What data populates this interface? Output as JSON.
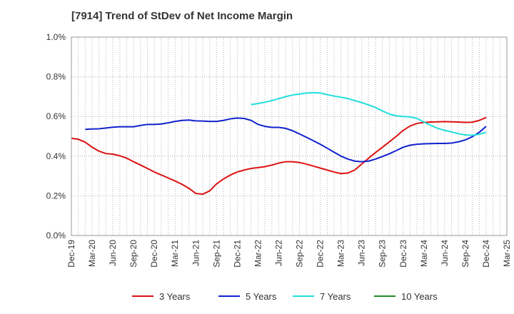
{
  "chart_data": {
    "type": "line",
    "title": "[7914]  Trend of StDev of Net Income Margin",
    "xlabel": "",
    "ylabel": "",
    "x_ticks": [
      "Dec-19",
      "Mar-20",
      "Jun-20",
      "Sep-20",
      "Dec-20",
      "Mar-21",
      "Jun-21",
      "Sep-21",
      "Dec-21",
      "Mar-22",
      "Jun-22",
      "Sep-22",
      "Dec-22",
      "Mar-23",
      "Jun-23",
      "Sep-23",
      "Dec-23",
      "Mar-24",
      "Jun-24",
      "Sep-24",
      "Dec-24",
      "Mar-25"
    ],
    "y_ticks": [
      "0.0%",
      "0.2%",
      "0.4%",
      "0.6%",
      "0.8%",
      "1.0%"
    ],
    "ylim": [
      0,
      1.0
    ],
    "y_unit": "%",
    "grid": true,
    "legend_position": "bottom",
    "series": [
      {
        "name": "3 Years",
        "color": "#dd1111",
        "x": [
          "Dec-19",
          "Jan-20",
          "Feb-20",
          "Mar-20",
          "Apr-20",
          "May-20",
          "Jun-20",
          "Jul-20",
          "Aug-20",
          "Sep-20",
          "Oct-20",
          "Nov-20",
          "Dec-20",
          "Jan-21",
          "Feb-21",
          "Mar-21",
          "Apr-21",
          "May-21",
          "Jun-21",
          "Jul-21",
          "Aug-21",
          "Sep-21",
          "Oct-21",
          "Nov-21",
          "Dec-21",
          "Jan-22",
          "Feb-22",
          "Mar-22",
          "Apr-22",
          "May-22",
          "Jun-22",
          "Jul-22",
          "Aug-22",
          "Sep-22",
          "Oct-22",
          "Nov-22",
          "Dec-22",
          "Jan-23",
          "Feb-23",
          "Mar-23",
          "Apr-23",
          "May-23",
          "Jun-23",
          "Jul-23",
          "Aug-23",
          "Sep-23",
          "Oct-23",
          "Nov-23",
          "Dec-23",
          "Jan-24",
          "Feb-24",
          "Mar-24",
          "Apr-24",
          "May-24",
          "Jun-24",
          "Jul-24",
          "Aug-24",
          "Sep-24",
          "Oct-24",
          "Nov-24",
          "Dec-24"
        ],
        "values": [
          0.49,
          0.485,
          0.47,
          0.445,
          0.425,
          0.413,
          0.41,
          0.402,
          0.39,
          0.372,
          0.355,
          0.338,
          0.32,
          0.305,
          0.29,
          0.275,
          0.258,
          0.238,
          0.212,
          0.208,
          0.225,
          0.26,
          0.285,
          0.305,
          0.32,
          0.33,
          0.338,
          0.342,
          0.347,
          0.355,
          0.365,
          0.372,
          0.372,
          0.368,
          0.36,
          0.35,
          0.34,
          0.33,
          0.32,
          0.312,
          0.315,
          0.33,
          0.36,
          0.39,
          0.418,
          0.445,
          0.472,
          0.5,
          0.53,
          0.552,
          0.565,
          0.57,
          0.572,
          0.573,
          0.574,
          0.573,
          0.572,
          0.57,
          0.571,
          0.58,
          0.595
        ]
      },
      {
        "name": "5 Years",
        "color": "#1122cc",
        "x": [
          "Dec-19",
          "Jan-20",
          "Feb-20",
          "Mar-20",
          "Apr-20",
          "May-20",
          "Jun-20",
          "Jul-20",
          "Aug-20",
          "Sep-20",
          "Oct-20",
          "Nov-20",
          "Dec-20",
          "Jan-21",
          "Feb-21",
          "Mar-21",
          "Apr-21",
          "May-21",
          "Jun-21",
          "Jul-21",
          "Aug-21",
          "Sep-21",
          "Oct-21",
          "Nov-21",
          "Dec-21",
          "Jan-22",
          "Feb-22",
          "Mar-22",
          "Apr-22",
          "May-22",
          "Jun-22",
          "Jul-22",
          "Aug-22",
          "Sep-22",
          "Oct-22",
          "Nov-22",
          "Dec-22",
          "Jan-23",
          "Feb-23",
          "Mar-23",
          "Apr-23",
          "May-23",
          "Jun-23",
          "Jul-23",
          "Aug-23",
          "Sep-23",
          "Oct-23",
          "Nov-23",
          "Dec-23",
          "Jan-24",
          "Feb-24",
          "Mar-24",
          "Apr-24",
          "May-24",
          "Jun-24",
          "Jul-24",
          "Aug-24",
          "Sep-24",
          "Oct-24",
          "Nov-24",
          "Dec-24"
        ],
        "values": [
          null,
          null,
          0.535,
          0.537,
          0.538,
          0.542,
          0.546,
          0.548,
          0.548,
          0.548,
          0.555,
          0.56,
          0.56,
          0.562,
          0.568,
          0.575,
          0.58,
          0.582,
          0.578,
          0.577,
          0.575,
          0.575,
          0.58,
          0.588,
          0.592,
          0.59,
          0.58,
          0.56,
          0.55,
          0.545,
          0.545,
          0.54,
          0.528,
          0.512,
          0.495,
          0.478,
          0.46,
          0.44,
          0.42,
          0.4,
          0.385,
          0.375,
          0.372,
          0.375,
          0.385,
          0.398,
          0.412,
          0.428,
          0.445,
          0.455,
          0.46,
          0.462,
          0.463,
          0.464,
          0.464,
          0.466,
          0.472,
          0.482,
          0.498,
          0.52,
          0.55
        ]
      },
      {
        "name": "7 Years",
        "color": "#22dddd",
        "x": [
          "Dec-21",
          "Jan-22",
          "Feb-22",
          "Mar-22",
          "Apr-22",
          "May-22",
          "Jun-22",
          "Jul-22",
          "Aug-22",
          "Sep-22",
          "Oct-22",
          "Nov-22",
          "Dec-22",
          "Jan-23",
          "Feb-23",
          "Mar-23",
          "Apr-23",
          "May-23",
          "Jun-23",
          "Jul-23",
          "Aug-23",
          "Sep-23",
          "Oct-23",
          "Nov-23",
          "Dec-23",
          "Jan-24",
          "Feb-24",
          "Mar-24",
          "Apr-24",
          "May-24",
          "Jun-24",
          "Jul-24",
          "Aug-24",
          "Sep-24",
          "Oct-24",
          "Nov-24",
          "Dec-24"
        ],
        "values": [
          null,
          null,
          0.66,
          0.665,
          0.672,
          0.68,
          0.69,
          0.7,
          0.708,
          0.713,
          0.718,
          0.72,
          0.718,
          0.71,
          0.703,
          0.697,
          0.69,
          0.68,
          0.67,
          0.658,
          0.645,
          0.628,
          0.612,
          0.603,
          0.6,
          0.598,
          0.59,
          0.572,
          0.555,
          0.54,
          0.53,
          0.522,
          0.513,
          0.507,
          0.505,
          0.51,
          0.52
        ]
      },
      {
        "name": "10 Years",
        "color": "#228822",
        "x": [],
        "values": []
      }
    ]
  }
}
